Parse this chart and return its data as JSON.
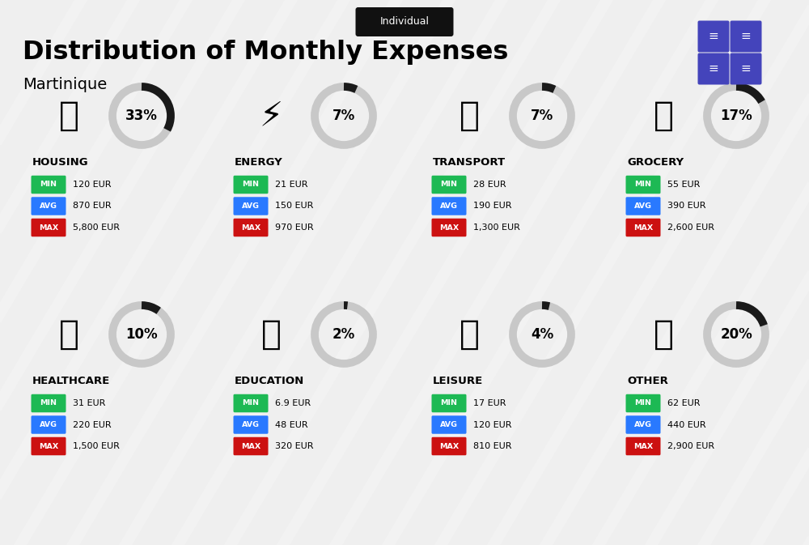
{
  "title": "Distribution of Monthly Expenses",
  "subtitle": "Martinique",
  "tag": "Individual",
  "bg_color": "#efefef",
  "categories": [
    {
      "name": "HOUSING",
      "pct": 33,
      "min": "120 EUR",
      "avg": "870 EUR",
      "max": "5,800 EUR",
      "row": 0,
      "col": 0
    },
    {
      "name": "ENERGY",
      "pct": 7,
      "min": "21 EUR",
      "avg": "150 EUR",
      "max": "970 EUR",
      "row": 0,
      "col": 1
    },
    {
      "name": "TRANSPORT",
      "pct": 7,
      "min": "28 EUR",
      "avg": "190 EUR",
      "max": "1,300 EUR",
      "row": 0,
      "col": 2
    },
    {
      "name": "GROCERY",
      "pct": 17,
      "min": "55 EUR",
      "avg": "390 EUR",
      "max": "2,600 EUR",
      "row": 0,
      "col": 3
    },
    {
      "name": "HEALTHCARE",
      "pct": 10,
      "min": "31 EUR",
      "avg": "220 EUR",
      "max": "1,500 EUR",
      "row": 1,
      "col": 0
    },
    {
      "name": "EDUCATION",
      "pct": 2,
      "min": "6.9 EUR",
      "avg": "48 EUR",
      "max": "320 EUR",
      "row": 1,
      "col": 1
    },
    {
      "name": "LEISURE",
      "pct": 4,
      "min": "17 EUR",
      "avg": "120 EUR",
      "max": "810 EUR",
      "row": 1,
      "col": 2
    },
    {
      "name": "OTHER",
      "pct": 20,
      "min": "62 EUR",
      "avg": "440 EUR",
      "max": "2,900 EUR",
      "row": 1,
      "col": 3
    }
  ],
  "min_color": "#1db954",
  "avg_color": "#2979ff",
  "max_color": "#cc1111",
  "donut_color": "#1a1a1a",
  "donut_bg": "#c8c8c8",
  "tag_bg": "#111111",
  "tag_fg": "#ffffff",
  "grid_icon_color": "#4444bb"
}
